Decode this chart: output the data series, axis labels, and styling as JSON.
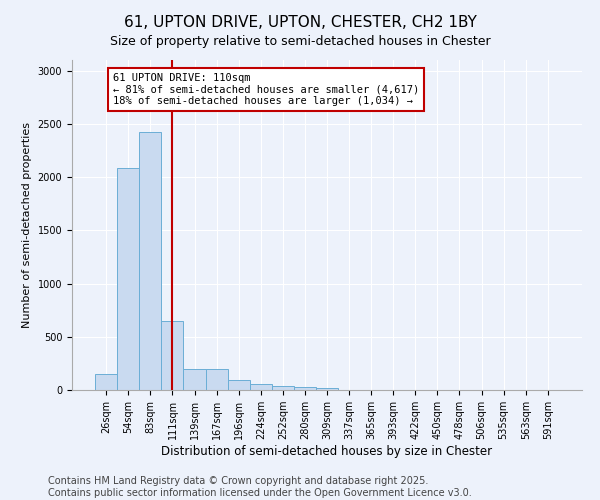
{
  "title": "61, UPTON DRIVE, UPTON, CHESTER, CH2 1BY",
  "subtitle": "Size of property relative to semi-detached houses in Chester",
  "xlabel": "Distribution of semi-detached houses by size in Chester",
  "ylabel": "Number of semi-detached properties",
  "categories": [
    "26sqm",
    "54sqm",
    "83sqm",
    "111sqm",
    "139sqm",
    "167sqm",
    "196sqm",
    "224sqm",
    "252sqm",
    "280sqm",
    "309sqm",
    "337sqm",
    "365sqm",
    "393sqm",
    "422sqm",
    "450sqm",
    "478sqm",
    "506sqm",
    "535sqm",
    "563sqm",
    "591sqm"
  ],
  "values": [
    155,
    2090,
    2420,
    650,
    200,
    195,
    90,
    55,
    40,
    25,
    15,
    0,
    0,
    0,
    0,
    0,
    0,
    0,
    0,
    0,
    0
  ],
  "bar_color": "#c9daf0",
  "bar_edge_color": "#6baed6",
  "property_bin_index": 3,
  "vline_color": "#c00000",
  "annotation_box_color": "#c00000",
  "annotation_line1": "61 UPTON DRIVE: 110sqm",
  "annotation_line2": "← 81% of semi-detached houses are smaller (4,617)",
  "annotation_line3": "18% of semi-detached houses are larger (1,034) →",
  "footer": "Contains HM Land Registry data © Crown copyright and database right 2025.\nContains public sector information licensed under the Open Government Licence v3.0.",
  "ylim": [
    0,
    3100
  ],
  "yticks": [
    0,
    500,
    1000,
    1500,
    2000,
    2500,
    3000
  ],
  "bg_color": "#edf2fb",
  "title_fontsize": 11,
  "subtitle_fontsize": 9,
  "footer_fontsize": 7,
  "tick_fontsize": 7,
  "ylabel_fontsize": 8,
  "xlabel_fontsize": 8.5
}
